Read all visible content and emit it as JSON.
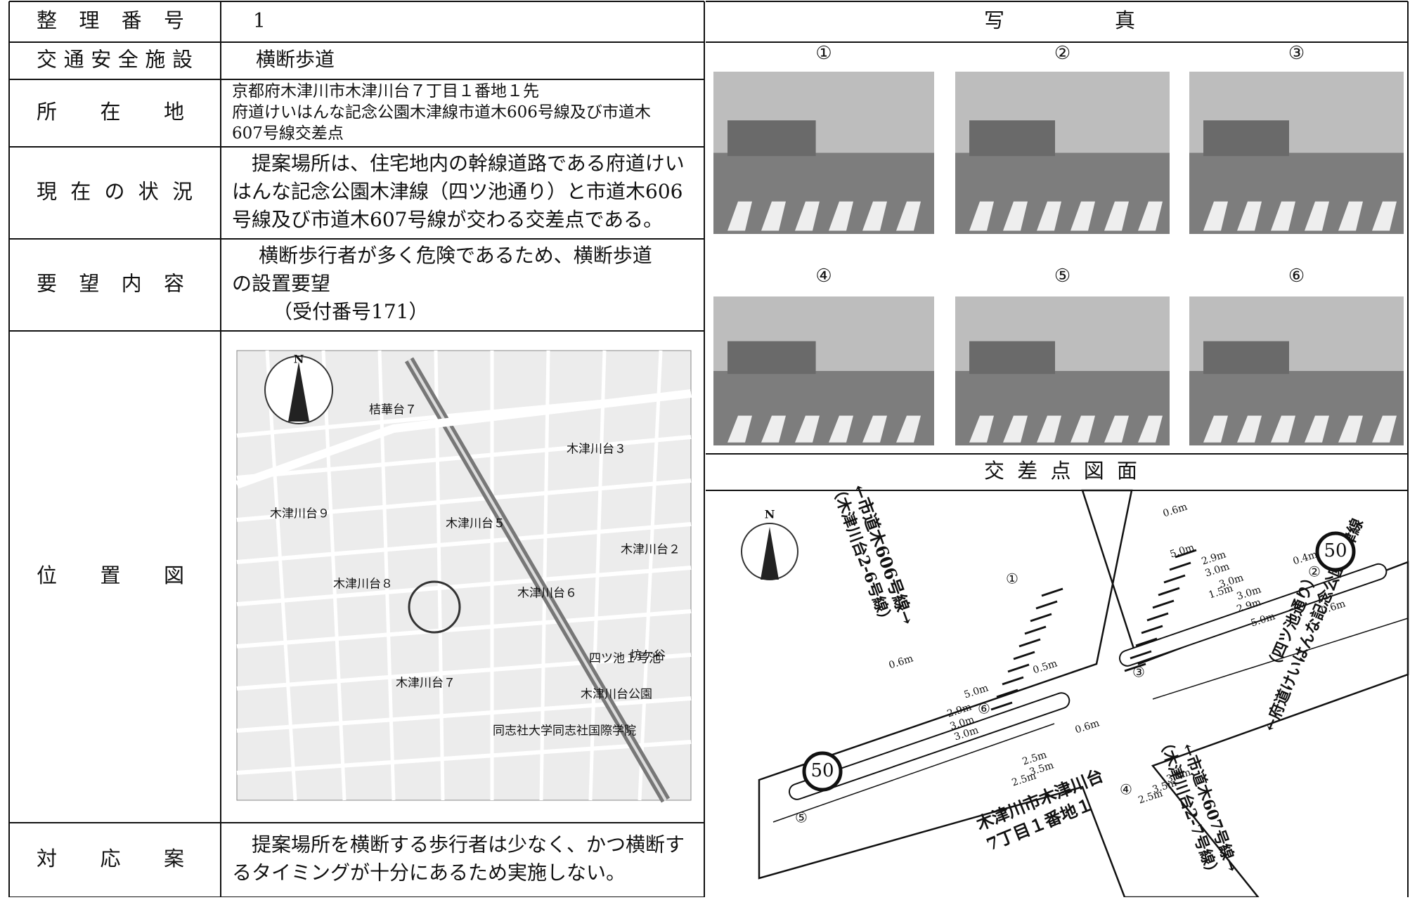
{
  "table": {
    "rows": [
      {
        "label": "整理番号",
        "value": [
          "1"
        ]
      },
      {
        "label": "交通安全施設",
        "value": [
          "横断歩道"
        ]
      },
      {
        "label": "所在地",
        "value": [
          "京都府木津川市木津川台７丁目１番地１先",
          "府道けいはんな記念公園木津線市道木606号線及び市道木",
          "607号線交差点"
        ]
      },
      {
        "label": "現在の状況",
        "value": [
          "提案場所は、住宅地内の幹線道路である府道けい",
          "はんな記念公園木津線（四ツ池通り）と市道木606",
          "号線及び市道木607号線が交わる交差点である。"
        ]
      },
      {
        "label": "要望内容",
        "value": [
          "横断歩行者が多く危険であるため、横断歩道",
          "の設置要望",
          "（受付番号171）"
        ]
      },
      {
        "label": "位置図",
        "value": []
      },
      {
        "label": "対応案",
        "value": [
          "提案場所を横断する歩行者は少なく、かつ横断す",
          "るタイミングが十分にあるため実施しない。"
        ]
      }
    ]
  },
  "map": {
    "north": "N",
    "labels": [
      "桔華台７",
      "木津川台９",
      "木津川台５",
      "木津川台８",
      "木津川台６",
      "木津川台７",
      "木津川台３",
      "木津川台２",
      "四ツ池１号池",
      "木津川台公園",
      "同志社大学同志社国際学院",
      "坊ケ谷"
    ]
  },
  "photos": {
    "title": "写真",
    "labels": [
      "①",
      "②",
      "③",
      "④",
      "⑤",
      "⑥"
    ]
  },
  "diagram": {
    "title": "交差点図面",
    "north": "N",
    "roads": [
      "←市道木606号線→",
      "（木津川台2-6号線）",
      "←府道けいはんな記念公園木津線",
      "（四ツ池通り）",
      "←市道木607号線→",
      "（木津川台2-7号線）",
      "木津川市木津川台",
      "7丁目１番地１"
    ],
    "speed": [
      "50",
      "50"
    ],
    "dims": [
      "0.6m",
      "5.0m",
      "2.9m",
      "3.0m",
      "3.0m",
      "1.5m",
      "0.4m",
      "3.0m",
      "2.9m",
      "5.0m",
      "0.6m",
      "0.6m",
      "0.5m",
      "5.0m",
      "2.9m",
      "3.0m",
      "3.0m",
      "0.6m",
      "2.5m",
      "3.5m",
      "2.5m",
      "3.5m",
      "2.5m",
      "3.5m"
    ],
    "markers": [
      "①",
      "②",
      "③",
      "④",
      "⑤",
      "⑥"
    ]
  }
}
